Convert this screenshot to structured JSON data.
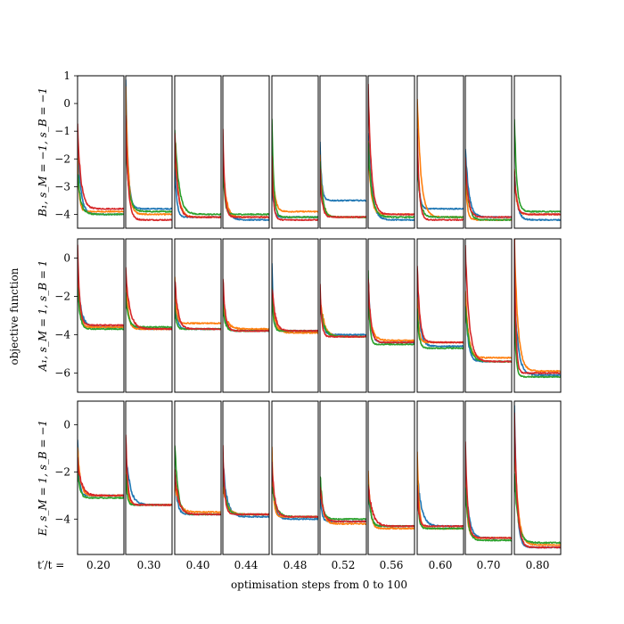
{
  "figure": {
    "ylabel": "objective function",
    "xlabel": "optimisation steps from 0 to 100",
    "column_prefix": "t′/t = "
  },
  "chart_data": {
    "type": "line",
    "x_range": [
      0,
      100
    ],
    "series_colors": {
      "blue": "#1f77b4",
      "orange": "#ff7f0e",
      "green": "#2ca02c",
      "red": "#d62728"
    },
    "columns": [
      "0.20",
      "0.30",
      "0.40",
      "0.44",
      "0.48",
      "0.52",
      "0.56",
      "0.60",
      "0.70",
      "0.80"
    ],
    "rows": [
      {
        "name": "B1",
        "label": "B₁, s_M = −1, s_B = −1",
        "ylim": [
          -4.5,
          1
        ],
        "yticks": [
          1,
          0,
          -1,
          -2,
          -3,
          -4
        ],
        "ytick_labels": [
          "1",
          "0",
          "−1",
          "−2",
          "−3",
          "−4"
        ],
        "panels": [
          {
            "blue": {
              "start": -1.5,
              "end": -4.0
            },
            "orange": {
              "start": -2.0,
              "end": -3.9
            },
            "green": {
              "start": -2.5,
              "end": -4.0
            },
            "red": {
              "start": -0.8,
              "end": -3.8
            }
          },
          {
            "blue": {
              "start": 1.0,
              "end": -3.8
            },
            "orange": {
              "start": 0.5,
              "end": -4.0
            },
            "green": {
              "start": -1.5,
              "end": -3.9
            },
            "red": {
              "start": -0.5,
              "end": -4.2
            }
          },
          {
            "blue": {
              "start": -2.0,
              "end": -4.1
            },
            "orange": {
              "start": -1.5,
              "end": -4.1
            },
            "green": {
              "start": -0.9,
              "end": -4.0
            },
            "red": {
              "start": -1.2,
              "end": -4.1
            }
          },
          {
            "blue": {
              "start": -2.5,
              "end": -4.2
            },
            "orange": {
              "start": -2.0,
              "end": -4.1
            },
            "green": {
              "start": -2.0,
              "end": -4.0
            },
            "red": {
              "start": -1.0,
              "end": -4.1
            }
          },
          {
            "blue": {
              "start": -2.5,
              "end": -4.1
            },
            "orange": {
              "start": -1.8,
              "end": -3.9
            },
            "green": {
              "start": -0.5,
              "end": -4.1
            },
            "red": {
              "start": -2.0,
              "end": -4.2
            }
          },
          {
            "blue": {
              "start": -1.5,
              "end": -3.5
            },
            "orange": {
              "start": -2.0,
              "end": -4.1
            },
            "green": {
              "start": -2.2,
              "end": -4.1
            },
            "red": {
              "start": -2.5,
              "end": -4.1
            }
          },
          {
            "blue": {
              "start": -1.0,
              "end": -4.2
            },
            "orange": {
              "start": -1.5,
              "end": -4.0
            },
            "green": {
              "start": -1.5,
              "end": -4.1
            },
            "red": {
              "start": 0.6,
              "end": -4.0
            }
          },
          {
            "blue": {
              "start": -1.5,
              "end": -3.8
            },
            "orange": {
              "start": 0.3,
              "end": -4.1
            },
            "green": {
              "start": -2.0,
              "end": -4.1
            },
            "red": {
              "start": -1.0,
              "end": -4.2
            }
          },
          {
            "blue": {
              "start": -1.5,
              "end": -4.1
            },
            "orange": {
              "start": -2.5,
              "end": -4.2
            },
            "green": {
              "start": -2.0,
              "end": -4.2
            },
            "red": {
              "start": -2.0,
              "end": -4.1
            }
          },
          {
            "blue": {
              "start": -2.5,
              "end": -4.2
            },
            "orange": {
              "start": -2.5,
              "end": -4.0
            },
            "green": {
              "start": -0.4,
              "end": -3.9
            },
            "red": {
              "start": -2.5,
              "end": -4.0
            }
          }
        ]
      },
      {
        "name": "A1",
        "label": "A₁, s_M = 1, s_B = 1",
        "ylim": [
          -7,
          1
        ],
        "yticks": [
          0,
          -2,
          -4,
          -6
        ],
        "ytick_labels": [
          "0",
          "−2",
          "−4",
          "−6"
        ],
        "panels": [
          {
            "blue": {
              "start": -1.0,
              "end": -3.6
            },
            "orange": {
              "start": -0.5,
              "end": -3.6
            },
            "green": {
              "start": -1.5,
              "end": -3.7
            },
            "red": {
              "start": 0.7,
              "end": -3.5
            }
          },
          {
            "blue": {
              "start": -1.5,
              "end": -3.7
            },
            "orange": {
              "start": -0.5,
              "end": -3.7
            },
            "green": {
              "start": -2.0,
              "end": -3.6
            },
            "red": {
              "start": -0.7,
              "end": -3.7
            }
          },
          {
            "blue": {
              "start": -2.0,
              "end": -3.7
            },
            "orange": {
              "start": -1.0,
              "end": -3.4
            },
            "green": {
              "start": -2.5,
              "end": -3.7
            },
            "red": {
              "start": -1.0,
              "end": -3.7
            }
          },
          {
            "blue": {
              "start": -2.0,
              "end": -3.8
            },
            "orange": {
              "start": -2.5,
              "end": -3.7
            },
            "green": {
              "start": -2.5,
              "end": -3.8
            },
            "red": {
              "start": -1.0,
              "end": -3.8
            }
          },
          {
            "blue": {
              "start": -0.5,
              "end": -3.8
            },
            "orange": {
              "start": -2.0,
              "end": -3.9
            },
            "green": {
              "start": -1.5,
              "end": -3.8
            },
            "red": {
              "start": -1.5,
              "end": -3.8
            }
          },
          {
            "blue": {
              "start": -2.0,
              "end": -4.0
            },
            "orange": {
              "start": -2.0,
              "end": -4.1
            },
            "green": {
              "start": -2.5,
              "end": -4.1
            },
            "red": {
              "start": -1.5,
              "end": -4.1
            }
          },
          {
            "blue": {
              "start": -1.0,
              "end": -4.4
            },
            "orange": {
              "start": -2.5,
              "end": -4.3
            },
            "green": {
              "start": -0.8,
              "end": -4.5
            },
            "red": {
              "start": -1.0,
              "end": -4.4
            }
          },
          {
            "blue": {
              "start": -1.5,
              "end": -4.6
            },
            "orange": {
              "start": -2.0,
              "end": -4.4
            },
            "green": {
              "start": -2.5,
              "end": -4.7
            },
            "red": {
              "start": -0.3,
              "end": -4.4
            }
          },
          {
            "blue": {
              "start": -2.0,
              "end": -5.4
            },
            "orange": {
              "start": -1.5,
              "end": -5.2
            },
            "green": {
              "start": -2.5,
              "end": -5.4
            },
            "red": {
              "start": 0.5,
              "end": -5.4
            }
          },
          {
            "blue": {
              "start": -1.5,
              "end": -6.1
            },
            "orange": {
              "start": 1.0,
              "end": -5.9
            },
            "green": {
              "start": -2.5,
              "end": -6.2
            },
            "red": {
              "start": 1.0,
              "end": -6.0
            }
          }
        ]
      },
      {
        "name": "E",
        "label": "E, s_M = 1, s_B = −1",
        "ylim": [
          -5.5,
          1
        ],
        "yticks": [
          0,
          -2,
          -4
        ],
        "ytick_labels": [
          "0",
          "−2",
          "−4"
        ],
        "panels": [
          {
            "blue": {
              "start": -0.6,
              "end": -3.0
            },
            "orange": {
              "start": -1.0,
              "end": -3.0
            },
            "green": {
              "start": -2.0,
              "end": -3.1
            },
            "red": {
              "start": -1.5,
              "end": -3.0
            }
          },
          {
            "blue": {
              "start": -1.0,
              "end": -3.4
            },
            "orange": {
              "start": -1.5,
              "end": -3.4
            },
            "green": {
              "start": -2.0,
              "end": -3.4
            },
            "red": {
              "start": -0.3,
              "end": -3.4
            }
          },
          {
            "blue": {
              "start": -2.0,
              "end": -3.8
            },
            "orange": {
              "start": -2.5,
              "end": -3.7
            },
            "green": {
              "start": -0.7,
              "end": -3.8
            },
            "red": {
              "start": -2.0,
              "end": -3.8
            }
          },
          {
            "blue": {
              "start": -1.5,
              "end": -3.9
            },
            "orange": {
              "start": -2.5,
              "end": -3.8
            },
            "green": {
              "start": -2.0,
              "end": -3.8
            },
            "red": {
              "start": -1.0,
              "end": -3.8
            }
          },
          {
            "blue": {
              "start": -2.0,
              "end": -4.0
            },
            "orange": {
              "start": -1.0,
              "end": -3.9
            },
            "green": {
              "start": -2.5,
              "end": -3.9
            },
            "red": {
              "start": -1.5,
              "end": -3.9
            }
          },
          {
            "blue": {
              "start": -2.5,
              "end": -4.1
            },
            "orange": {
              "start": -2.5,
              "end": -4.2
            },
            "green": {
              "start": -2.0,
              "end": -4.0
            },
            "red": {
              "start": -2.5,
              "end": -4.1
            }
          },
          {
            "blue": {
              "start": -2.5,
              "end": -4.3
            },
            "orange": {
              "start": -2.0,
              "end": -4.4
            },
            "green": {
              "start": -2.5,
              "end": -4.3
            },
            "red": {
              "start": -2.5,
              "end": -4.3
            }
          },
          {
            "blue": {
              "start": -2.0,
              "end": -4.3
            },
            "orange": {
              "start": -1.0,
              "end": -4.4
            },
            "green": {
              "start": -2.5,
              "end": -4.4
            },
            "red": {
              "start": -2.5,
              "end": -4.3
            }
          },
          {
            "blue": {
              "start": -2.0,
              "end": -4.8
            },
            "orange": {
              "start": -2.0,
              "end": -4.8
            },
            "green": {
              "start": -2.5,
              "end": -4.9
            },
            "red": {
              "start": -0.7,
              "end": -4.8
            }
          },
          {
            "blue": {
              "start": 1.0,
              "end": -5.2
            },
            "orange": {
              "start": -0.5,
              "end": -5.1
            },
            "green": {
              "start": -2.0,
              "end": -5.0
            },
            "red": {
              "start": 0.5,
              "end": -5.2
            }
          }
        ]
      }
    ]
  }
}
